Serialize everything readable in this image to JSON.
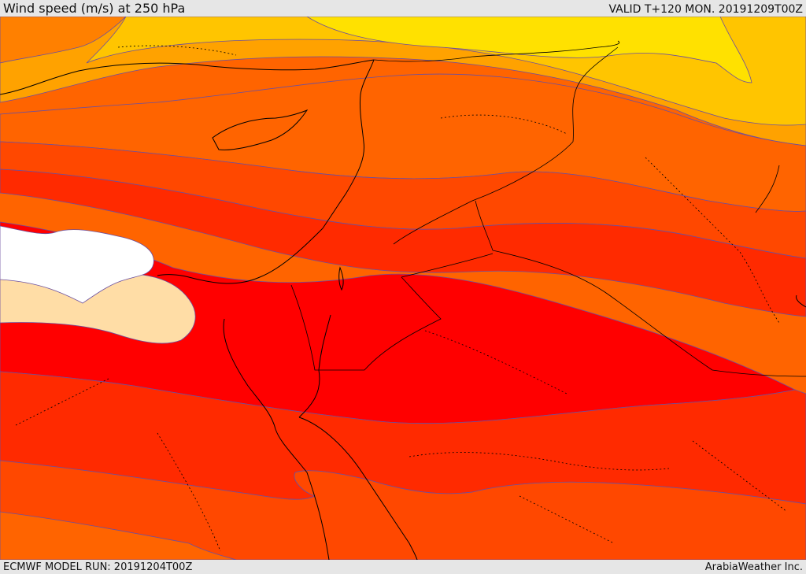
{
  "header": {
    "title": "Wind speed (m/s) at 250 hPa",
    "valid": "VALID T+120 MON. 20191209T00Z"
  },
  "footer": {
    "model_run": "ECMWF MODEL RUN: 20191204T00Z",
    "provider": "ArabiaWeather Inc."
  },
  "colors": {
    "band_lightyellow": "#ffe100",
    "band_yellow": "#ffc500",
    "band_orange_light": "#ffa200",
    "band_orange": "#ff8000",
    "band_darkorange": "#ff6400",
    "band_redorange": "#ff4800",
    "band_red_light": "#ff2a00",
    "band_red": "#ff0000",
    "band_tan": "#ffdda6",
    "band_white": "#ffffff",
    "contour": "#6b4fa0",
    "border": "#000000"
  }
}
